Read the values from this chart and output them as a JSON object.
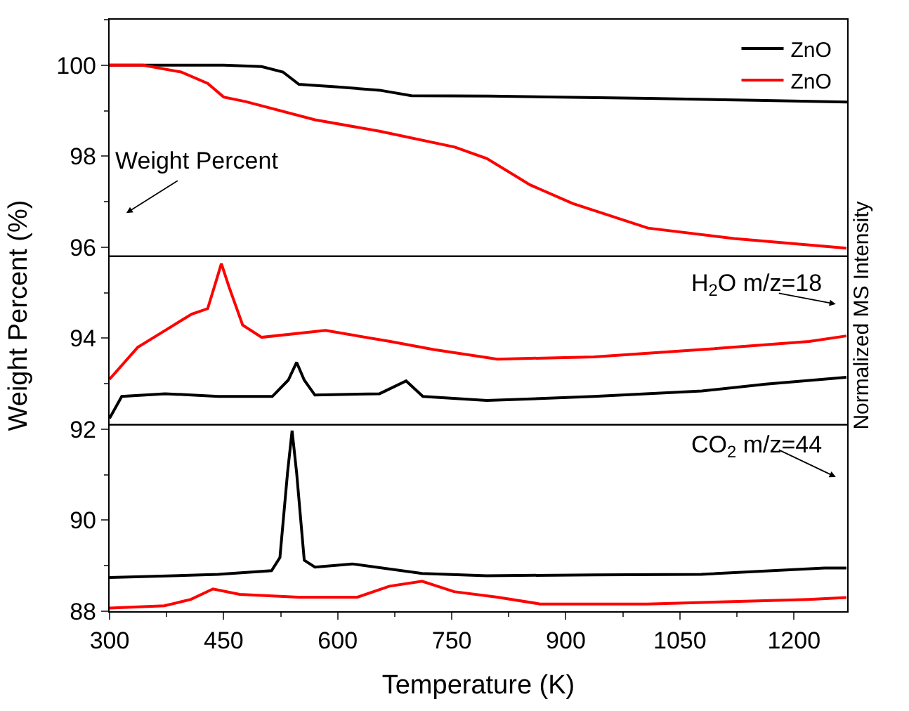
{
  "chart_data": {
    "type": "line",
    "xlabel": "Temperature (K)",
    "ylabel": "Weight Percent (%)",
    "y2label": "Normalized MS Intensity",
    "xlim": [
      300,
      1270
    ],
    "xticks": [
      300,
      450,
      600,
      750,
      900,
      1050,
      1200
    ],
    "ylim": [
      88,
      101
    ],
    "yticks": [
      88,
      90,
      92,
      94,
      96,
      98,
      100
    ],
    "legend": "top right",
    "marker": "none",
    "line_style": "solid",
    "annotations": [
      "Weight Percent",
      "H$_{2}$O m/z=18",
      "CO$_{2}$ m/z=44"
    ],
    "ref_lines": [
      {
        "axis": "y",
        "value": 95.8,
        "color": "#000000"
      },
      {
        "axis": "y",
        "value": 92.1,
        "color": "#000000"
      }
    ],
    "series": [
      {
        "name": "ZnO",
        "color": "#000000",
        "x": [
          300,
          450,
          500,
          528,
          549,
          600,
          655,
          697,
          800,
          1008,
          1150,
          1270
        ],
        "values": [
          100,
          100,
          99.97,
          99.85,
          99.58,
          99.52,
          99.45,
          99.33,
          99.32,
          99.27,
          99.23,
          99.19
        ]
      },
      {
        "name": "ZnO",
        "color": "#ff0000",
        "x": [
          300,
          344,
          394,
          429,
          450,
          479,
          570,
          655,
          754,
          796,
          853,
          909,
          1008,
          1121,
          1269
        ],
        "values": [
          100,
          100,
          99.85,
          99.6,
          99.3,
          99.2,
          98.8,
          98.55,
          98.2,
          97.95,
          97.37,
          96.96,
          96.42,
          96.19,
          95.98
        ]
      },
      {
        "color": "#ff0000",
        "x": [
          300,
          337,
          373,
          408,
          429,
          440,
          447,
          457,
          475,
          500,
          584,
          669,
          726,
          810,
          937,
          1079,
          1220,
          1269
        ],
        "values": [
          93.1,
          93.8,
          94.17,
          94.53,
          94.65,
          95.25,
          95.64,
          95.13,
          94.29,
          94.02,
          94.17,
          93.93,
          93.75,
          93.54,
          93.59,
          93.75,
          93.93,
          94.05
        ]
      },
      {
        "color": "#000000",
        "x": [
          300,
          316,
          373,
          443,
          514,
          535,
          546,
          556,
          570,
          655,
          690,
          712,
          796,
          937,
          1079,
          1163,
          1269
        ],
        "values": [
          92.24,
          92.72,
          92.78,
          92.72,
          92.72,
          93.08,
          93.47,
          93.08,
          92.75,
          92.78,
          93.06,
          92.72,
          92.63,
          92.72,
          92.84,
          92.99,
          93.14
        ]
      },
      {
        "color": "#000000",
        "x": [
          300,
          443,
          513,
          524,
          534,
          540,
          546,
          556,
          570,
          619,
          711,
          796,
          937,
          1078,
          1240,
          1269
        ],
        "values": [
          88.74,
          88.81,
          88.89,
          89.18,
          91.04,
          91.97,
          91.04,
          89.12,
          88.97,
          89.04,
          88.83,
          88.78,
          88.8,
          88.81,
          88.95,
          88.95
        ]
      },
      {
        "color": "#ff0000",
        "x": [
          300,
          372,
          407,
          436,
          471,
          548,
          626,
          668,
          711,
          753,
          810,
          866,
          1007,
          1219,
          1269
        ],
        "values": [
          88.07,
          88.12,
          88.26,
          88.49,
          88.37,
          88.31,
          88.31,
          88.55,
          88.66,
          88.43,
          88.31,
          88.16,
          88.16,
          88.26,
          88.3
        ]
      }
    ]
  }
}
